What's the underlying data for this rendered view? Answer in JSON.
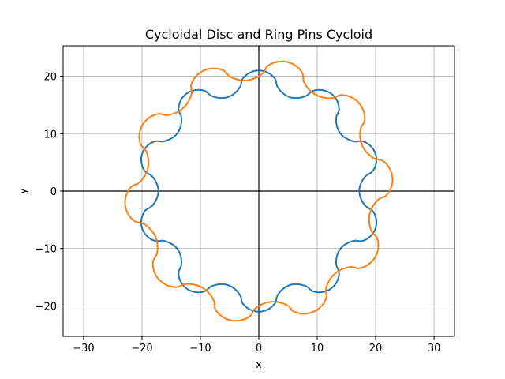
{
  "chart_data": {
    "type": "line",
    "title": "Cycloidal Disc and Ring Pins Cycloid",
    "xlabel": "x",
    "ylabel": "y",
    "xlim": [
      -33.5,
      33.5
    ],
    "ylim": [
      -25.3,
      25.3
    ],
    "xticks": [
      -30,
      -20,
      -10,
      0,
      10,
      20,
      30
    ],
    "yticks": [
      -20,
      -10,
      0,
      10,
      20
    ],
    "xtick_labels": [
      "−30",
      "−20",
      "−10",
      "0",
      "10",
      "20",
      "30"
    ],
    "ytick_labels": [
      "−20",
      "−10",
      "0",
      "10",
      "20"
    ],
    "grid": true,
    "axis_lines_through_origin": true,
    "legend": "none",
    "series": [
      {
        "color": "#1f77b4",
        "lobes": 10,
        "mean_radius": 19.1,
        "lobe_amplitude": 1.9,
        "phase_deg": 0,
        "max_radius": 21.0,
        "min_radius": 17.2
      },
      {
        "color": "#ff7f0e",
        "lobes": 10,
        "mean_radius": 21.2,
        "lobe_amplitude": 1.8,
        "phase_deg": 12,
        "max_radius": 23.0,
        "min_radius": 19.4
      }
    ]
  }
}
